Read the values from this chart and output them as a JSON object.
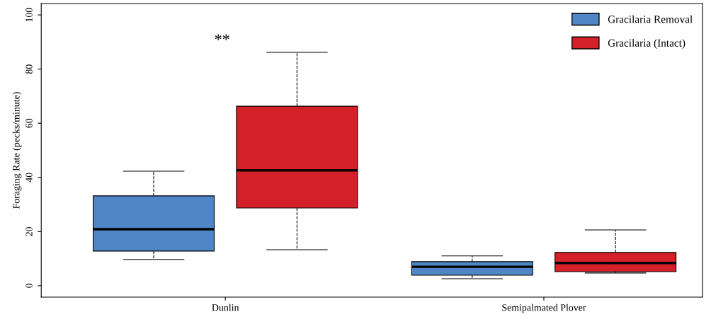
{
  "chart_data": {
    "type": "box",
    "ylabel": "Foraging Rate (pecks/minute)",
    "categories": [
      "Dunlin",
      "Semipalmated Plover"
    ],
    "ylim": [
      -4.2,
      104.2
    ],
    "yticks": [
      0,
      20,
      40,
      60,
      80,
      100
    ],
    "legend": "top right",
    "grid": false,
    "line_style": "dashed",
    "series": [
      {
        "name": "Gracilaria Removal",
        "color": "#4f86c6",
        "boxes": [
          {
            "low": 9.7,
            "q1": 12.8,
            "median": 20.9,
            "q3": 33.2,
            "high": 42.3
          },
          {
            "low": 2.6,
            "q1": 3.9,
            "median": 7,
            "q3": 8.9,
            "high": 11
          }
        ]
      },
      {
        "name": "Gracilaria (Intact)",
        "color": "#d42028",
        "boxes": [
          {
            "low": 13.3,
            "q1": 28.7,
            "median": 42.6,
            "q3": 66.3,
            "high": 86.2
          },
          {
            "low": 4.7,
            "q1": 5.2,
            "median": 8.4,
            "q3": 12.3,
            "high": 20.6
          }
        ]
      }
    ],
    "annotations": [
      "**"
    ]
  }
}
